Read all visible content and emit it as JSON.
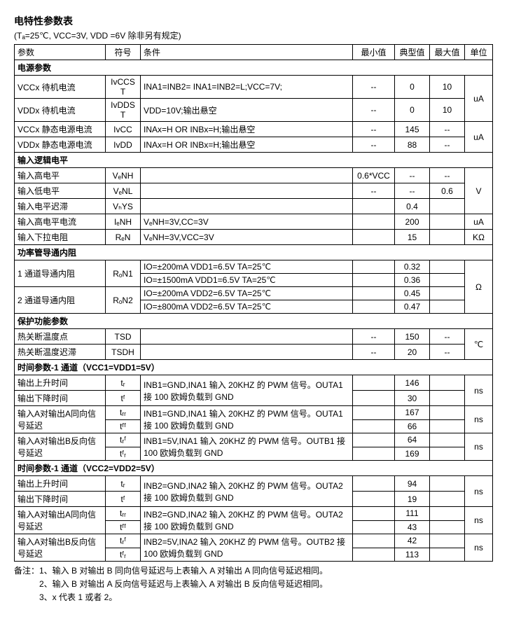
{
  "title": "电特性参数表",
  "subtitle": "(Tₐ=25℃, VCC=3V, VDD =6V 除非另有规定)",
  "headers": {
    "param": "参数",
    "symbol": "符号",
    "condition": "条件",
    "min": "最小值",
    "typ": "典型值",
    "max": "最大值",
    "unit": "单位"
  },
  "sections": {
    "power": "电源参数",
    "logic": "输入逻辑电平",
    "rds": "功率管导通内阻",
    "protect": "保护功能参数",
    "timing1": "时间参数-1 通道（VCC1=VDD1=5V）",
    "timing2": "时间参数-1 通道（VCC2=VDD2=5V）"
  },
  "power": {
    "r1": {
      "p": "VCCx 待机电流",
      "s": "IᴠCCST",
      "c": "INA1=INB2= INA1=INB2=L;VCC=7V;",
      "min": "--",
      "typ": "0",
      "max": "10"
    },
    "r2": {
      "p": "VDDx 待机电流",
      "s": "IᴠDDST",
      "c": "VDD=10V;输出悬空",
      "min": "--",
      "typ": "0",
      "max": "10"
    },
    "u12": "uA",
    "r3": {
      "p": "VCCx 静态电源电流",
      "s": "IᴠCC",
      "c": "INAx=H OR INBx=H;输出悬空",
      "min": "--",
      "typ": "145",
      "max": "--"
    },
    "r4": {
      "p": "VDDx 静态电源电流",
      "s": "IᴠDD",
      "c": "INAx=H OR INBx=H;输出悬空",
      "min": "--",
      "typ": "88",
      "max": "--"
    },
    "u34": "uA"
  },
  "logic": {
    "r1": {
      "p": "输入高电平",
      "s": "VₑNH",
      "c": "",
      "min": "0.6*VCC",
      "typ": "--",
      "max": "--"
    },
    "r2": {
      "p": "输入低电平",
      "s": "VₑNL",
      "c": "",
      "min": "--",
      "typ": "--",
      "max": "0.6"
    },
    "r3": {
      "p": "输入电平迟滞",
      "s": "VₕYS",
      "c": "",
      "min": "",
      "typ": "0.4",
      "max": ""
    },
    "u123": "V",
    "r4": {
      "p": "输入高电平电流",
      "s": "IₑNH",
      "c": "VₑNH=3V,CC=3V",
      "min": "",
      "typ": "200",
      "max": "",
      "u": "uA"
    },
    "r5": {
      "p": "输入下拉电阻",
      "s": "RₑN",
      "c": "VₑNH=3V,VCC=3V",
      "min": "",
      "typ": "15",
      "max": "",
      "u": "KΩ"
    }
  },
  "rds": {
    "r1p": "1 通道导通内阻",
    "r1s": "RₒN1",
    "r1c1": "IO=±200mA VDD1=6.5V TA=25℃",
    "r1t1": "0.32",
    "r1c2": "IO=±1500mA VDD1=6.5V TA=25℃",
    "r1t2": "0.36",
    "r2p": "2 通道导通内阻",
    "r2s": "RₒN2",
    "r2c1": "IO=±200mA VDD2=6.5V TA=25℃",
    "r2t1": "0.45",
    "r2c2": "IO=±800mA VDD2=6.5V TA=25℃",
    "r2t2": "0.47",
    "u": "Ω"
  },
  "protect": {
    "r1": {
      "p": "热关断温度点",
      "s": "TSD",
      "c": "",
      "min": "--",
      "typ": "150",
      "max": "--"
    },
    "r2": {
      "p": "热关断温度迟滞",
      "s": "TSDH",
      "c": "",
      "min": "--",
      "typ": "20",
      "max": "--"
    },
    "u": "℃"
  },
  "timing1": {
    "r1": {
      "p": "输出上升时间",
      "s": "tᵣ",
      "typ": "146"
    },
    "r2": {
      "p": "输出下降时间",
      "s": "tᶠ",
      "typ": "30"
    },
    "c12": "INB1=GND,INA1 输入 20KHZ 的 PWM 信号。OUTA1 接 100 欧姆负载到 GND",
    "u12": "ns",
    "r3": {
      "p": "输入A对输出A同向信号延迟",
      "s1": "tᵣᵣ",
      "s2": "tᶠᶠ",
      "t1": "167",
      "t2": "66"
    },
    "c3": "INB1=GND,INA1 输入 20KHZ 的 PWM 信号。OUTA1 接 100 欧姆负载到 GND",
    "u3": "ns",
    "r4": {
      "p": "输入A对输出B反向信号延迟",
      "s1": "tᵣᶠ",
      "s2": "tᶠᵣ",
      "t1": "64",
      "t2": "169"
    },
    "c4": "INB1=5V,INA1 输入 20KHZ 的 PWM 信号。OUTB1 接 100 欧姆负载到 GND",
    "u4": "ns"
  },
  "timing2": {
    "r1": {
      "p": "输出上升时间",
      "s": "tᵣ",
      "typ": "94"
    },
    "r2": {
      "p": "输出下降时间",
      "s": "tᶠ",
      "typ": "19"
    },
    "c12": "INB2=GND,INA2 输入 20KHZ 的 PWM 信号。OUTA2 接 100 欧姆负载到 GND",
    "u12": "ns",
    "r3": {
      "p": "输入A对输出A同向信号延迟",
      "s1": "tᵣᵣ",
      "s2": "tᶠᶠ",
      "t1": "111",
      "t2": "43"
    },
    "c3": "INB2=GND,INA2 输入 20KHZ 的 PWM 信号。OUTA2 接 100 欧姆负载到 GND",
    "u3": "ns",
    "r4": {
      "p": "输入A对输出B反向信号延迟",
      "s1": "tᵣᶠ",
      "s2": "tᶠᵣ",
      "t1": "42",
      "t2": "113"
    },
    "c4": "INB2=5V,INA2 输入 20KHZ 的 PWM 信号。OUTB2 接 100 欧姆负载到 GND",
    "u4": "ns"
  },
  "notes": {
    "n1": "备注：1、输入 B 对输出 B 同向信号延迟与上表输入 A 对输出 A 同向信号延迟相同。",
    "n2": "　　　2、输入 B 对输出 A 反向信号延迟与上表输入 A 对输出 B 反向信号延迟相同。",
    "n3": "　　　3、x 代表 1 或者 2。"
  }
}
